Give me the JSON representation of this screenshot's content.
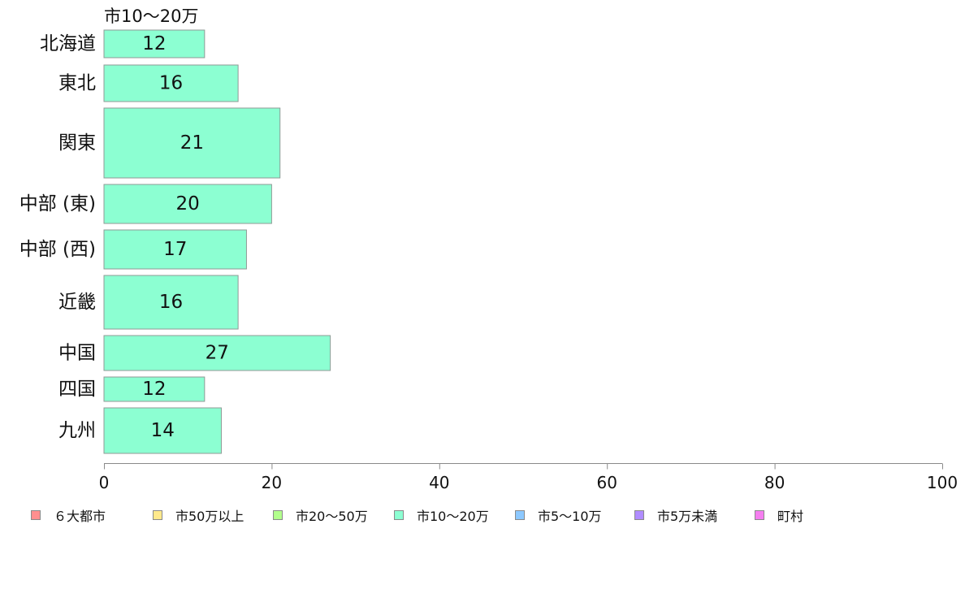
{
  "chart_data": {
    "type": "bar",
    "orientation": "horizontal",
    "series_title": "市10〜20万",
    "categories": [
      "北海道",
      "東北",
      "関東",
      "中部 (東)",
      "中部 (西)",
      "近畿",
      "中国",
      "四国",
      "九州"
    ],
    "values": [
      12,
      16,
      21,
      20,
      17,
      16,
      27,
      12,
      14
    ],
    "x_ticks": [
      0,
      20,
      40,
      60,
      80,
      100
    ],
    "xlim": [
      0,
      100
    ],
    "grid": false,
    "legend_position": "bottom",
    "bar_color": "#8cffd2",
    "legend": [
      {
        "label": "６大都市",
        "color": "#ff8f8f"
      },
      {
        "label": "市50万以上",
        "color": "#ffe98c"
      },
      {
        "label": "市20〜50万",
        "color": "#b2ff8c"
      },
      {
        "label": "市10〜20万",
        "color": "#8cffd2"
      },
      {
        "label": "市5〜10万",
        "color": "#8cc8ff"
      },
      {
        "label": "市5万未満",
        "color": "#b08cff"
      },
      {
        "label": "町村",
        "color": "#f57ef0"
      }
    ]
  }
}
